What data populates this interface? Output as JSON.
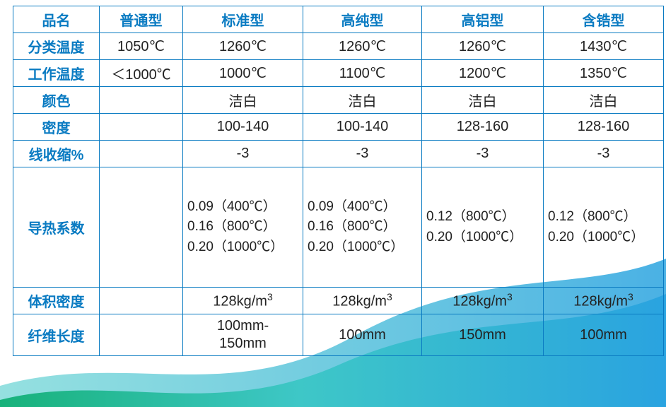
{
  "colors": {
    "border": "#0a7bc2",
    "header_text": "#0a7bc2",
    "body_text": "#222222",
    "bg": "#ffffff",
    "wave_teal": "#3ec7c7",
    "wave_blue": "#2aa3e0",
    "wave_green": "#18b27a"
  },
  "columns": [
    "品名",
    "普通型",
    "标准型",
    "高纯型",
    "高铝型",
    "含锆型"
  ],
  "rows": [
    {
      "label": "分类温度",
      "cells": [
        "1050℃",
        "1260℃",
        "1260℃",
        "1260℃",
        "1430℃"
      ]
    },
    {
      "label": "工作温度",
      "cells": [
        "＜1000℃",
        "1000℃",
        "1100℃",
        "1200℃",
        "1350℃"
      ]
    },
    {
      "label": "颜色",
      "cells": [
        "",
        "洁白",
        "洁白",
        "洁白",
        "洁白"
      ]
    },
    {
      "label": "密度",
      "cells": [
        "",
        "100-140",
        "100-140",
        "128-160",
        "128-160"
      ]
    },
    {
      "label": "线收缩%",
      "cells": [
        "",
        "-3",
        "-3",
        "-3",
        "-3"
      ]
    },
    {
      "label": "导热系数",
      "cells": [
        "",
        "0.09（400℃）\n0.16（800℃）\n0.20（1000℃）",
        "0.09（400℃）\n0.16（800℃）\n0.20（1000℃）",
        "0.12（800℃）\n0.20（1000℃）",
        "0.12（800℃）\n0.20（1000℃）"
      ],
      "tall": true,
      "multi": true
    },
    {
      "label": "体积密度",
      "cells": [
        "",
        "128kg/m³",
        "128kg/m³",
        "128kg/m³",
        "128kg/m³"
      ]
    },
    {
      "label": "纤维长度",
      "cells": [
        "",
        "100mm-\n150mm",
        "100mm",
        "150mm",
        "100mm"
      ],
      "twoline": true
    }
  ],
  "font": {
    "size_body": 20,
    "size_multi": 19,
    "weight_header": "bold"
  }
}
